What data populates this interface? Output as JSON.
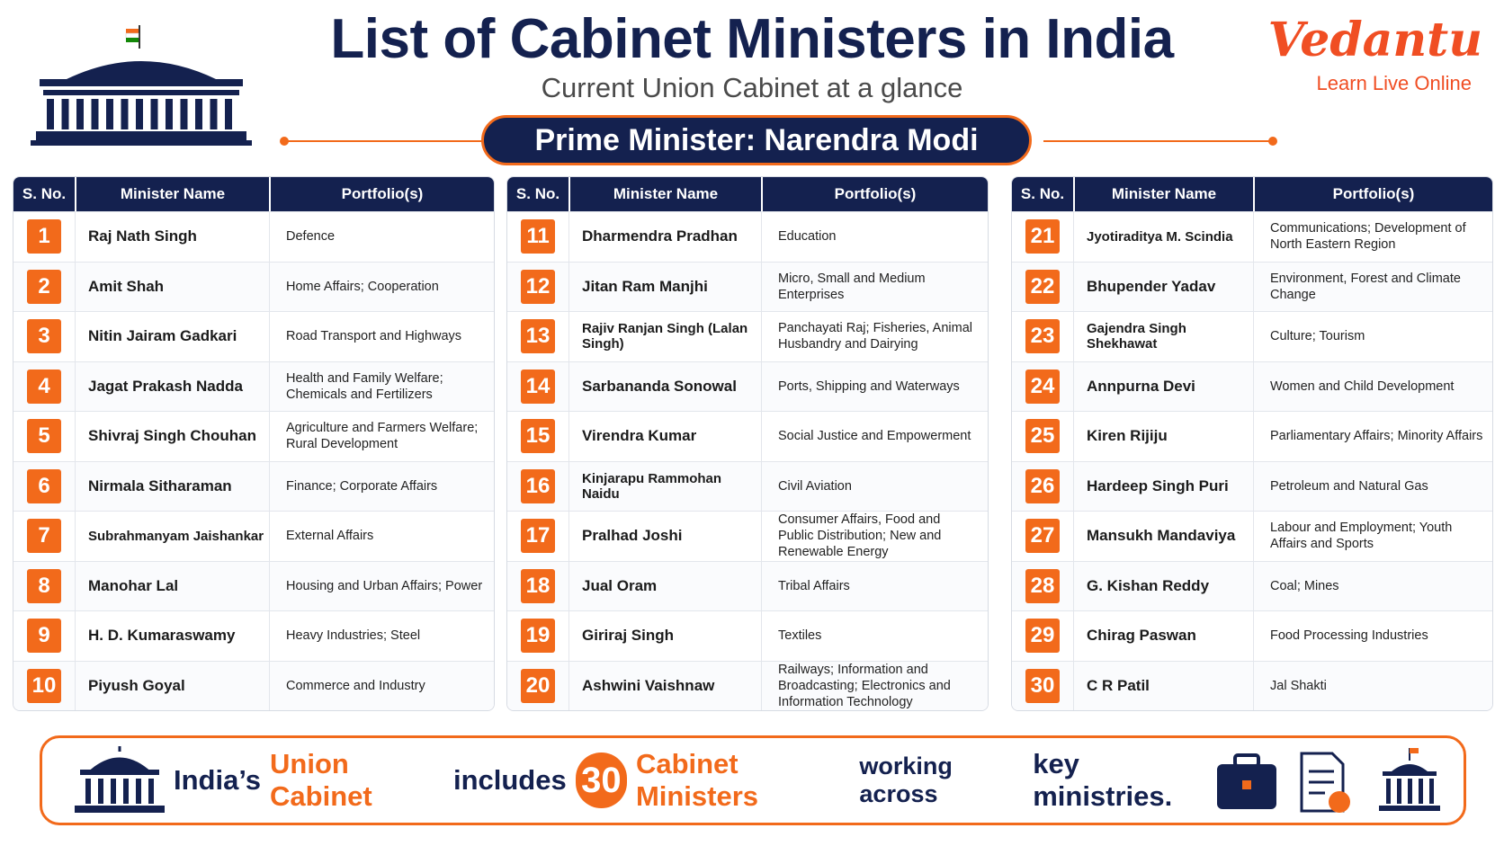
{
  "header": {
    "title": "List of Cabinet Ministers in India",
    "subtitle": "Current Union Cabinet at a glance",
    "banner": "Prime Minister: Narendra Modi"
  },
  "logo": {
    "name": "Vedantu",
    "tagline": "Learn Live Online"
  },
  "table": {
    "columns": [
      "S. No.",
      "Minister Name",
      "Portfolio(s)"
    ],
    "sections": [
      [
        [
          1,
          "Raj Nath Singh",
          "Defence"
        ],
        [
          2,
          "Amit Shah",
          "Home Affairs; Cooperation"
        ],
        [
          3,
          "Nitin Jairam Gadkari",
          "Road Transport and Highways"
        ],
        [
          4,
          "Jagat Prakash Nadda",
          "Health and Family Welfare; Chemicals and Fertilizers"
        ],
        [
          5,
          "Shivraj Singh Chouhan",
          "Agriculture and Farmers Welfare; Rural Development"
        ],
        [
          6,
          "Nirmala Sitharaman",
          "Finance; Corporate Affairs"
        ],
        [
          7,
          "Subrahmanyam Jaishankar",
          "External Affairs"
        ],
        [
          8,
          "Manohar Lal",
          "Housing and Urban Affairs; Power"
        ],
        [
          9,
          "H. D. Kumaraswamy",
          "Heavy Industries; Steel"
        ],
        [
          10,
          "Piyush Goyal",
          "Commerce and Industry"
        ]
      ],
      [
        [
          11,
          "Dharmendra Pradhan",
          "Education"
        ],
        [
          12,
          "Jitan Ram Manjhi",
          "Micro, Small and Medium Enterprises"
        ],
        [
          13,
          "Rajiv Ranjan Singh (Lalan Singh)",
          "Panchayati Raj; Fisheries, Animal Husbandry and Dairying"
        ],
        [
          14,
          "Sarbananda Sonowal",
          "Ports, Shipping and Waterways"
        ],
        [
          15,
          "Virendra Kumar",
          "Social Justice and Empowerment"
        ],
        [
          16,
          "Kinjarapu Rammohan Naidu",
          "Civil Aviation"
        ],
        [
          17,
          "Pralhad Joshi",
          "Consumer Affairs, Food and Public Distribution; New and Renewable Energy"
        ],
        [
          18,
          "Jual Oram",
          "Tribal Affairs"
        ],
        [
          19,
          "Giriraj Singh",
          "Textiles"
        ],
        [
          20,
          "Ashwini Vaishnaw",
          "Railways; Information and Broadcasting; Electronics and Information Technology"
        ]
      ],
      [
        [
          21,
          "Jyotiraditya M. Scindia",
          "Communications; Development of North Eastern Region"
        ],
        [
          22,
          "Bhupender Yadav",
          "Environment, Forest and Climate Change"
        ],
        [
          23,
          "Gajendra Singh Shekhawat",
          "Culture; Tourism"
        ],
        [
          24,
          "Annpurna Devi",
          "Women and Child Development"
        ],
        [
          25,
          "Kiren Rijiju",
          "Parliamentary Affairs; Minority Affairs"
        ],
        [
          26,
          "Hardeep Singh Puri",
          "Petroleum and Natural Gas"
        ],
        [
          27,
          "Mansukh Mandaviya",
          "Labour and Employment; Youth Affairs and Sports"
        ],
        [
          28,
          "G. Kishan Reddy",
          "Coal; Mines"
        ],
        [
          29,
          "Chirag Paswan",
          "Food Processing Industries"
        ],
        [
          30,
          "C R Patil",
          "Jal Shakti"
        ]
      ]
    ]
  },
  "footer": {
    "parts": [
      "India’s",
      "Union Cabinet",
      "includes",
      "30",
      "Cabinet Ministers",
      "working across",
      "key ministries."
    ]
  }
}
